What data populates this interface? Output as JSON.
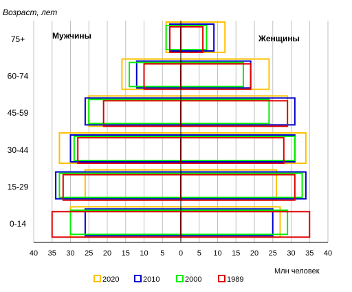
{
  "chart_data": {
    "type": "bar",
    "orientation": "horizontal",
    "ylabel": "Возраст, лет",
    "xlabel": "Млн человек",
    "left_label": "Мужчины",
    "right_label": "Женщины",
    "categories": [
      "75+",
      "60-74",
      "45-59",
      "30-44",
      "15-29",
      "0-14"
    ],
    "xlim": [
      -40,
      40
    ],
    "xticks": [
      -40,
      -35,
      -30,
      -25,
      -20,
      -15,
      -10,
      -5,
      0,
      5,
      10,
      15,
      20,
      25,
      30,
      35,
      40
    ],
    "xtick_labels": [
      "40",
      "35",
      "30",
      "25",
      "20",
      "15",
      "10",
      "5",
      "0",
      "5",
      "10",
      "15",
      "20",
      "25",
      "30",
      "35",
      "40"
    ],
    "grid": true,
    "legend_position": "bottom",
    "series": [
      {
        "name": "2020",
        "color": "#ffc000",
        "male": [
          4,
          16,
          25,
          33,
          26,
          30
        ],
        "female": [
          12,
          24,
          29,
          34,
          26,
          27
        ]
      },
      {
        "name": "2010",
        "color": "#0000cc",
        "male": [
          3,
          12,
          26,
          30,
          34,
          26
        ],
        "female": [
          9,
          19,
          31,
          31,
          34,
          25
        ]
      },
      {
        "name": "2000",
        "color": "#00ee00",
        "male": [
          4,
          14,
          25,
          29,
          33,
          30
        ],
        "female": [
          7,
          17,
          24,
          31,
          33,
          29
        ]
      },
      {
        "name": "1989",
        "color": "#dd0000",
        "male": [
          3,
          10,
          21,
          28,
          32,
          35
        ],
        "female": [
          6,
          19,
          29,
          28,
          31,
          35
        ]
      }
    ]
  }
}
